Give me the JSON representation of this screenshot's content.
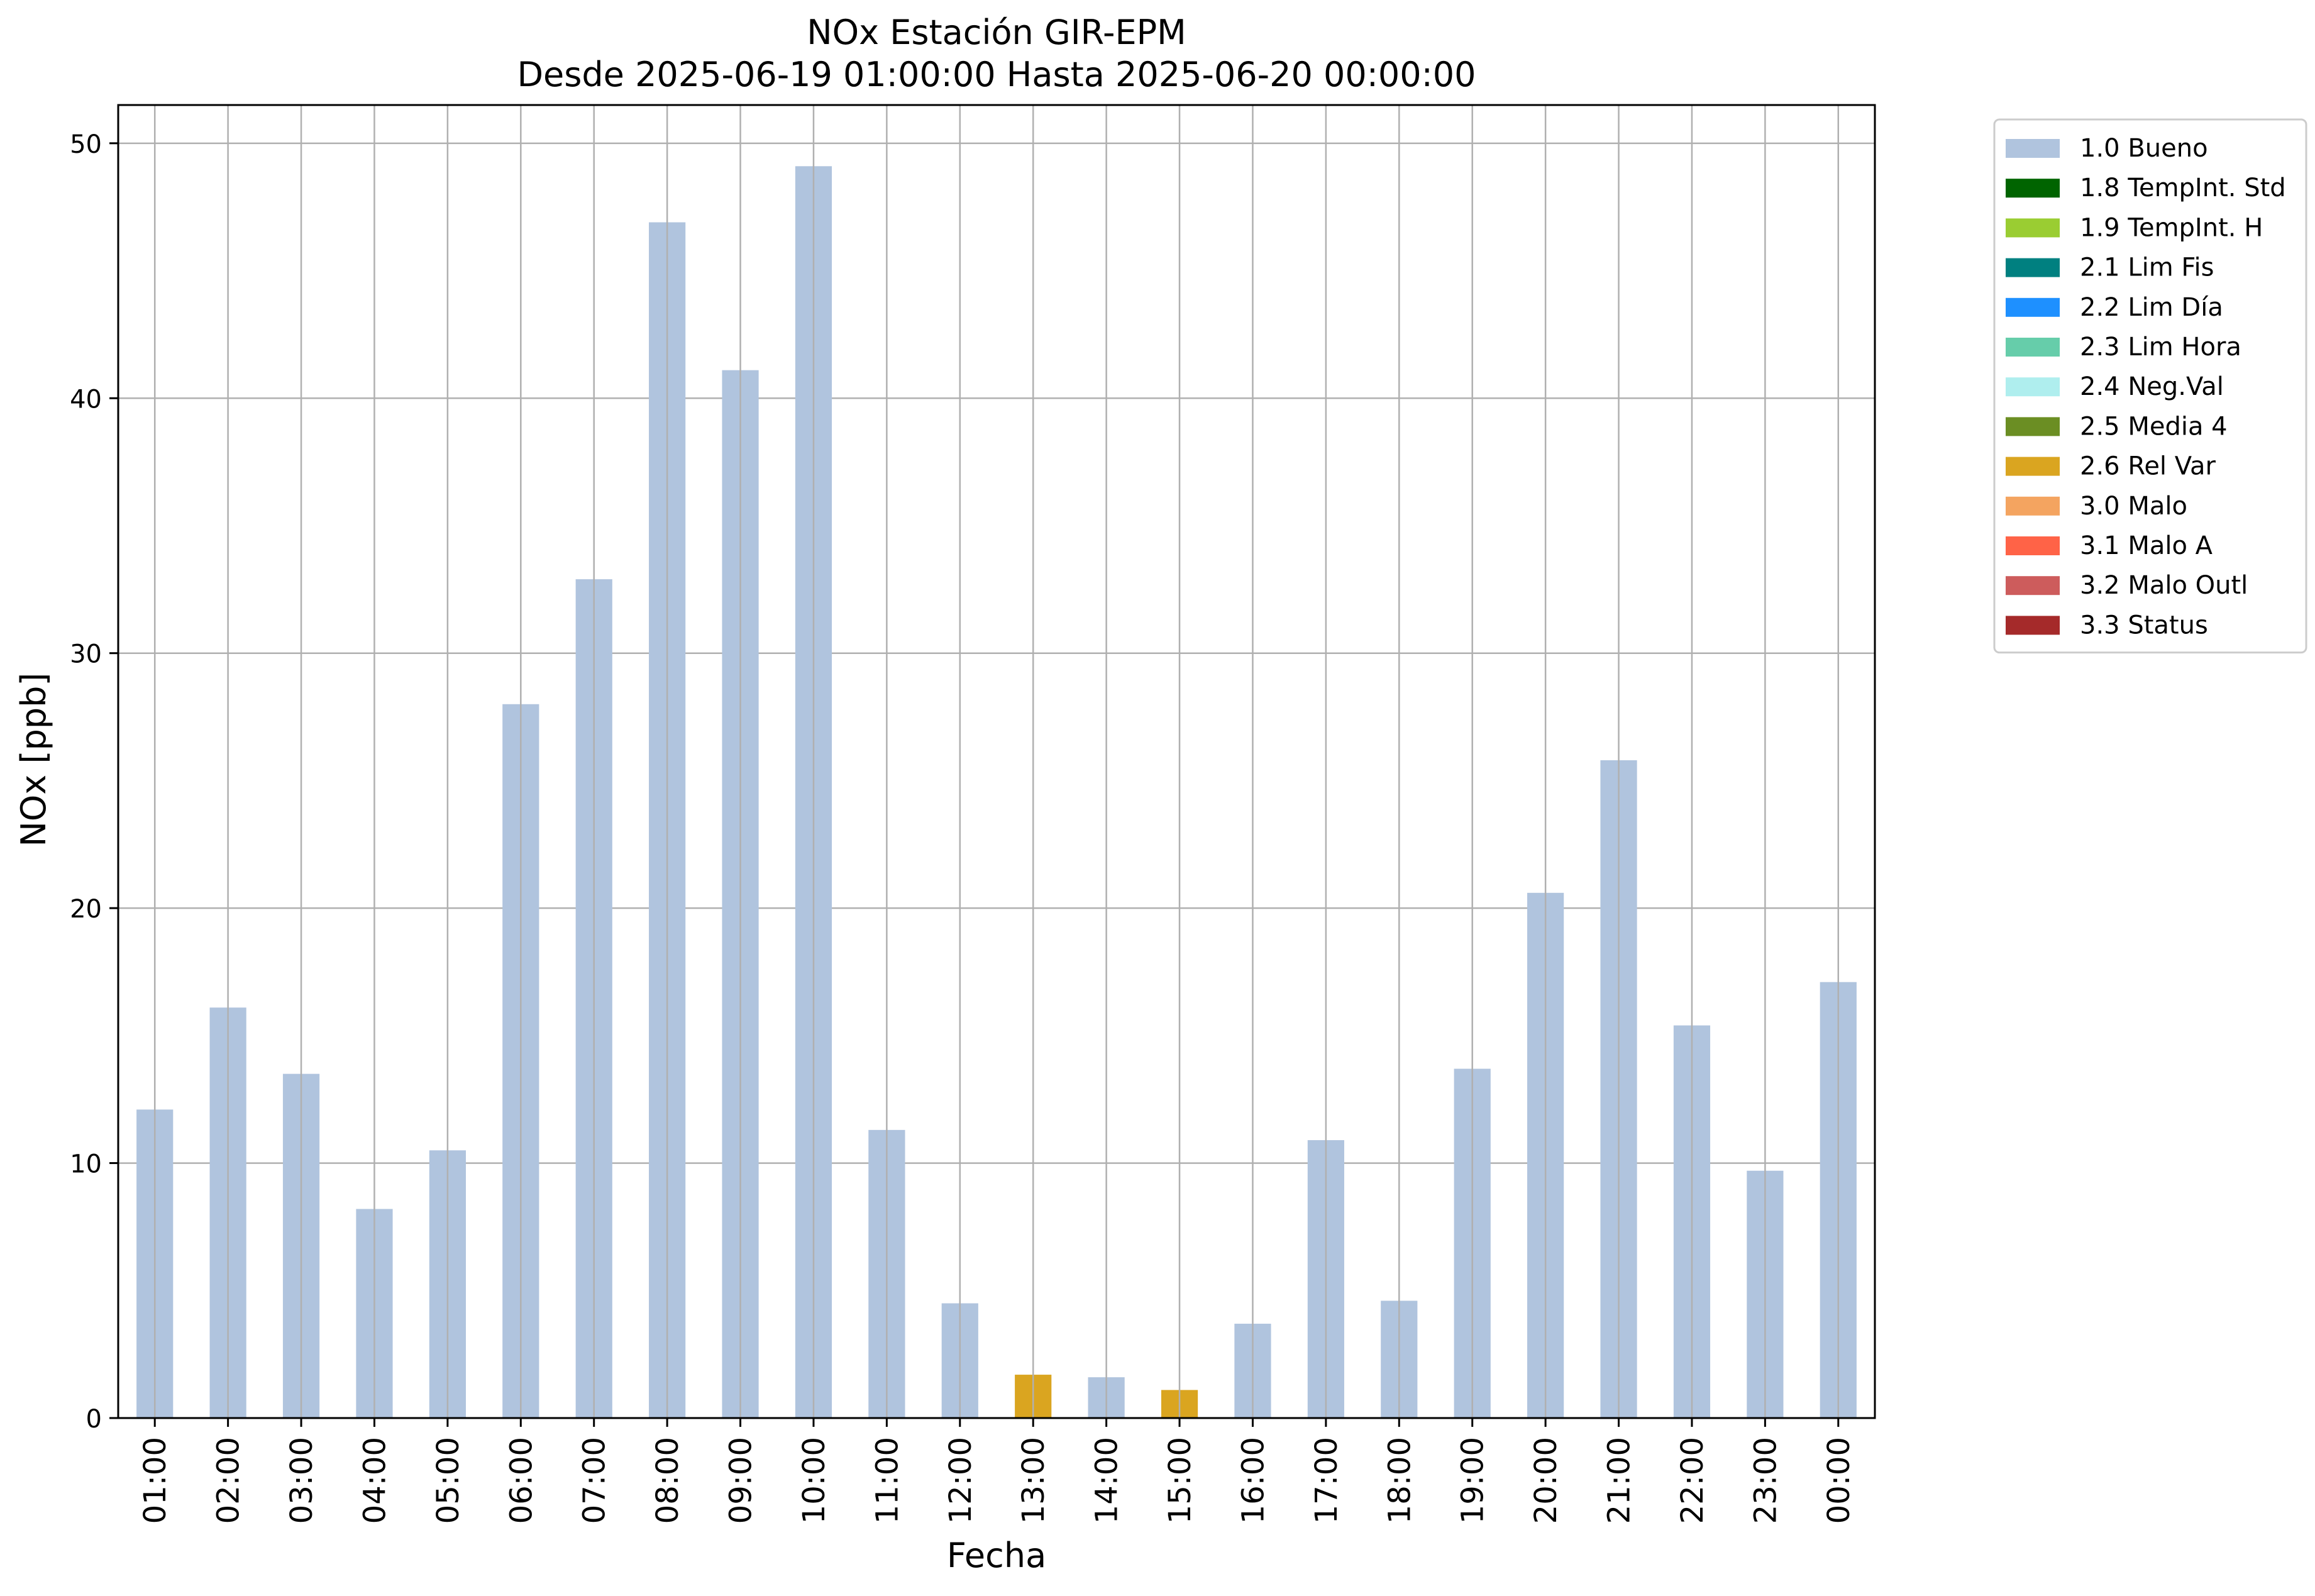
{
  "chart_data": {
    "type": "bar",
    "title_line1": "NOx Estación GIR-EPM",
    "title_line2": "Desde 2025-06-19 01:00:00 Hasta 2025-06-20 00:00:00",
    "xlabel": "Fecha",
    "ylabel": "NOx [ppb]",
    "ylim": [
      0,
      51.5
    ],
    "yticks": [
      0,
      10,
      20,
      30,
      40,
      50
    ],
    "grid": true,
    "legend_position": "outside-top-right",
    "categories": [
      "01:00",
      "02:00",
      "03:00",
      "04:00",
      "05:00",
      "06:00",
      "07:00",
      "08:00",
      "09:00",
      "10:00",
      "11:00",
      "12:00",
      "13:00",
      "14:00",
      "15:00",
      "16:00",
      "17:00",
      "18:00",
      "19:00",
      "20:00",
      "21:00",
      "22:00",
      "23:00",
      "00:00"
    ],
    "values": [
      12.1,
      16.1,
      13.5,
      8.2,
      10.5,
      28.0,
      32.9,
      46.9,
      41.1,
      49.1,
      11.3,
      4.5,
      1.7,
      1.6,
      1.1,
      3.7,
      10.9,
      4.6,
      13.7,
      20.6,
      25.8,
      15.4,
      9.7,
      17.1
    ],
    "flags": [
      "1.0 Bueno",
      "1.0 Bueno",
      "1.0 Bueno",
      "1.0 Bueno",
      "1.0 Bueno",
      "1.0 Bueno",
      "1.0 Bueno",
      "1.0 Bueno",
      "1.0 Bueno",
      "1.0 Bueno",
      "1.0 Bueno",
      "1.0 Bueno",
      "2.6 Rel Var",
      "1.0 Bueno",
      "2.6 Rel Var",
      "1.0 Bueno",
      "1.0 Bueno",
      "1.0 Bueno",
      "1.0 Bueno",
      "1.0 Bueno",
      "1.0 Bueno",
      "1.0 Bueno",
      "1.0 Bueno",
      "1.0 Bueno"
    ],
    "legend": [
      {
        "name": "1.0 Bueno",
        "color": "#b0c4de"
      },
      {
        "name": "1.8 TempInt. Std",
        "color": "#006400"
      },
      {
        "name": "1.9 TempInt. H",
        "color": "#9acd32"
      },
      {
        "name": "2.1 Lim Fis",
        "color": "#008080"
      },
      {
        "name": "2.2 Lim Día",
        "color": "#1e90ff"
      },
      {
        "name": "2.3 Lim Hora",
        "color": "#66cdaa"
      },
      {
        "name": "2.4 Neg.Val",
        "color": "#afeeee"
      },
      {
        "name": "2.5 Media 4",
        "color": "#6b8e23"
      },
      {
        "name": "2.6 Rel Var",
        "color": "#daa520"
      },
      {
        "name": "3.0 Malo",
        "color": "#f4a460"
      },
      {
        "name": "3.1 Malo A",
        "color": "#ff6347"
      },
      {
        "name": "3.2 Malo Outl",
        "color": "#cd5c5c"
      },
      {
        "name": "3.3 Status",
        "color": "#a52a2a"
      }
    ]
  }
}
